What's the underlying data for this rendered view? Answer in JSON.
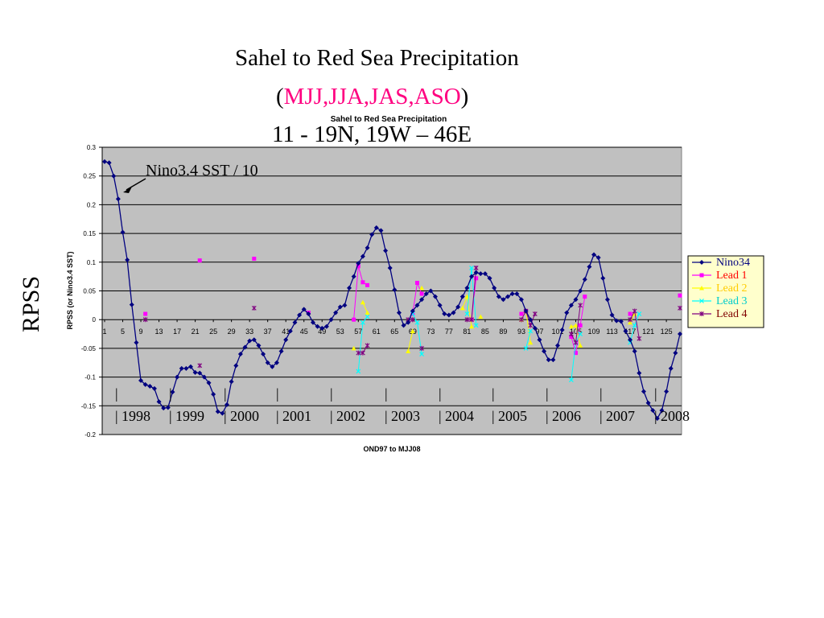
{
  "slide": {
    "title_line1": "Sahel to Red Sea Precipitation",
    "title_line2_open": "(",
    "title_line2_seasons": "MJJ,JJA,JAS,ASO",
    "title_line2_close": ")",
    "title_line3": "11 - 19N,  19W – 46E",
    "side_label": "RPSS",
    "annotation": "Nino3.4 SST / 10",
    "colors": {
      "seasons": "#ff0080",
      "plot_bg": "#c0c0c0"
    }
  },
  "chart_data": {
    "type": "line",
    "title": "Sahel to Red Sea Precipitation",
    "xlabel": "OND97 to MJJ08",
    "ylabel": "RPSS (or Nino3.4 SST)",
    "ylim": [
      -0.2,
      0.3
    ],
    "yticks": [
      "0.3",
      "0.25",
      "0.2",
      "0.15",
      "0.1",
      "0.05",
      "0",
      "-0.05",
      "-0.1",
      "-0.15",
      "-0.2"
    ],
    "xlim": [
      1,
      128
    ],
    "xtick_labels": [
      "1",
      "5",
      "9",
      "13",
      "17",
      "21",
      "25",
      "29",
      "33",
      "37",
      "41",
      "45",
      "49",
      "53",
      "57",
      "61",
      "65",
      "69",
      "73",
      "77",
      "81",
      "85",
      "89",
      "93",
      "97",
      "101",
      "105",
      "109",
      "113",
      "117",
      "121",
      "125"
    ],
    "grid": "horizontal",
    "legend_position": "right",
    "year_labels": [
      "1998",
      "1999",
      "2000",
      "2001",
      "2002",
      "2003",
      "2004",
      "2005",
      "2006",
      "2007",
      "2008"
    ],
    "year_marker": "|",
    "series": [
      {
        "name": "Nino34",
        "color": "#000080",
        "marker": "diamond",
        "points": [
          [
            1,
            0.275
          ],
          [
            2,
            0.273
          ],
          [
            3,
            0.25
          ],
          [
            4,
            0.21
          ],
          [
            5,
            0.152
          ],
          [
            6,
            0.104
          ],
          [
            7,
            0.026
          ],
          [
            8,
            -0.04
          ],
          [
            9,
            -0.106
          ],
          [
            10,
            -0.113
          ],
          [
            11,
            -0.116
          ],
          [
            12,
            -0.12
          ],
          [
            13,
            -0.143
          ],
          [
            14,
            -0.154
          ],
          [
            15,
            -0.153
          ],
          [
            16,
            -0.126
          ],
          [
            17,
            -0.1
          ],
          [
            18,
            -0.085
          ],
          [
            19,
            -0.085
          ],
          [
            20,
            -0.082
          ],
          [
            21,
            -0.092
          ],
          [
            22,
            -0.093
          ],
          [
            23,
            -0.1
          ],
          [
            24,
            -0.11
          ],
          [
            25,
            -0.13
          ],
          [
            26,
            -0.16
          ],
          [
            27,
            -0.163
          ],
          [
            28,
            -0.148
          ],
          [
            29,
            -0.108
          ],
          [
            30,
            -0.08
          ],
          [
            31,
            -0.06
          ],
          [
            32,
            -0.048
          ],
          [
            33,
            -0.037
          ],
          [
            34,
            -0.035
          ],
          [
            35,
            -0.045
          ],
          [
            36,
            -0.06
          ],
          [
            37,
            -0.075
          ],
          [
            38,
            -0.082
          ],
          [
            39,
            -0.075
          ],
          [
            40,
            -0.055
          ],
          [
            41,
            -0.035
          ],
          [
            42,
            -0.02
          ],
          [
            43,
            -0.005
          ],
          [
            44,
            0.008
          ],
          [
            45,
            0.018
          ],
          [
            46,
            0.01
          ],
          [
            47,
            -0.005
          ],
          [
            48,
            -0.012
          ],
          [
            49,
            -0.015
          ],
          [
            50,
            -0.012
          ],
          [
            51,
            0.0
          ],
          [
            52,
            0.012
          ],
          [
            53,
            0.022
          ],
          [
            54,
            0.025
          ],
          [
            55,
            0.055
          ],
          [
            56,
            0.075
          ],
          [
            57,
            0.098
          ],
          [
            58,
            0.11
          ],
          [
            59,
            0.125
          ],
          [
            60,
            0.148
          ],
          [
            61,
            0.16
          ],
          [
            62,
            0.155
          ],
          [
            63,
            0.12
          ],
          [
            64,
            0.09
          ],
          [
            65,
            0.052
          ],
          [
            66,
            0.012
          ],
          [
            67,
            -0.01
          ],
          [
            68,
            -0.005
          ],
          [
            69,
            0.015
          ],
          [
            70,
            0.025
          ],
          [
            71,
            0.035
          ],
          [
            72,
            0.045
          ],
          [
            73,
            0.05
          ],
          [
            74,
            0.04
          ],
          [
            75,
            0.025
          ],
          [
            76,
            0.01
          ],
          [
            77,
            0.008
          ],
          [
            78,
            0.012
          ],
          [
            79,
            0.022
          ],
          [
            80,
            0.04
          ],
          [
            81,
            0.055
          ],
          [
            82,
            0.075
          ],
          [
            83,
            0.082
          ],
          [
            84,
            0.08
          ],
          [
            85,
            0.08
          ],
          [
            86,
            0.072
          ],
          [
            87,
            0.055
          ],
          [
            88,
            0.04
          ],
          [
            89,
            0.035
          ],
          [
            90,
            0.04
          ],
          [
            91,
            0.045
          ],
          [
            92,
            0.045
          ],
          [
            93,
            0.035
          ],
          [
            94,
            0.015
          ],
          [
            95,
            0.0
          ],
          [
            96,
            -0.015
          ],
          [
            97,
            -0.035
          ],
          [
            98,
            -0.055
          ],
          [
            99,
            -0.07
          ],
          [
            100,
            -0.07
          ],
          [
            101,
            -0.045
          ],
          [
            102,
            -0.018
          ],
          [
            103,
            0.012
          ],
          [
            104,
            0.025
          ],
          [
            105,
            0.035
          ],
          [
            106,
            0.05
          ],
          [
            107,
            0.07
          ],
          [
            108,
            0.092
          ],
          [
            109,
            0.113
          ],
          [
            110,
            0.108
          ],
          [
            111,
            0.072
          ],
          [
            112,
            0.035
          ],
          [
            113,
            0.008
          ],
          [
            114,
            -0.002
          ],
          [
            115,
            -0.003
          ],
          [
            116,
            -0.02
          ],
          [
            117,
            -0.035
          ],
          [
            118,
            -0.055
          ],
          [
            119,
            -0.093
          ],
          [
            120,
            -0.125
          ],
          [
            121,
            -0.145
          ],
          [
            122,
            -0.158
          ],
          [
            123,
            -0.172
          ],
          [
            124,
            -0.158
          ],
          [
            125,
            -0.125
          ],
          [
            126,
            -0.085
          ],
          [
            127,
            -0.058
          ],
          [
            128,
            -0.025
          ]
        ]
      },
      {
        "name": "Lead 1",
        "color": "#ff00ff",
        "marker": "square",
        "points": [
          [
            10,
            0.01
          ],
          [
            22,
            0.103
          ],
          [
            34,
            0.106
          ],
          [
            46,
            0.012
          ],
          [
            56,
            0.0
          ],
          [
            57,
            0.093
          ],
          [
            58,
            0.065
          ],
          [
            59,
            0.06
          ],
          [
            69,
            0.01
          ],
          [
            70,
            0.064
          ],
          [
            71,
            0.045
          ],
          [
            82,
            0.0
          ],
          [
            83,
            0.072
          ],
          [
            93,
            0.01
          ],
          [
            94,
            0.015
          ],
          [
            104,
            -0.03
          ],
          [
            105,
            -0.058
          ],
          [
            106,
            -0.01
          ],
          [
            107,
            0.04
          ],
          [
            117,
            0.01
          ],
          [
            128,
            0.042
          ]
        ]
      },
      {
        "name": "Lead 2",
        "color": "#ffff00",
        "marker": "triangle",
        "points": [
          [
            56,
            -0.05
          ],
          [
            58,
            0.03
          ],
          [
            59,
            0.012
          ],
          [
            68,
            -0.055
          ],
          [
            69,
            -0.02
          ],
          [
            71,
            0.055
          ],
          [
            80,
            0.02
          ],
          [
            81,
            0.04
          ],
          [
            82,
            -0.012
          ],
          [
            84,
            0.005
          ],
          [
            93,
            0.0
          ],
          [
            94,
            0.015
          ],
          [
            95,
            -0.04
          ],
          [
            104,
            -0.012
          ],
          [
            105,
            -0.01
          ],
          [
            106,
            -0.045
          ],
          [
            117,
            -0.005
          ],
          [
            118,
            0.01
          ]
        ]
      },
      {
        "name": "Lead 3",
        "color": "#00ffff",
        "marker": "x",
        "points": [
          [
            57,
            -0.09
          ],
          [
            58,
            -0.005
          ],
          [
            59,
            0.005
          ],
          [
            69,
            0.01
          ],
          [
            70,
            -0.005
          ],
          [
            71,
            -0.06
          ],
          [
            81,
            0.01
          ],
          [
            82,
            0.09
          ],
          [
            83,
            -0.01
          ],
          [
            94,
            -0.05
          ],
          [
            95,
            -0.02
          ],
          [
            104,
            -0.105
          ],
          [
            105,
            -0.04
          ],
          [
            106,
            -0.025
          ],
          [
            117,
            -0.04
          ],
          [
            118,
            -0.01
          ],
          [
            119,
            0.01
          ]
        ]
      },
      {
        "name": "Lead 4",
        "color": "#800080",
        "marker": "star",
        "points": [
          [
            10,
            0.0
          ],
          [
            22,
            -0.08
          ],
          [
            34,
            0.02
          ],
          [
            57,
            -0.058
          ],
          [
            58,
            -0.058
          ],
          [
            59,
            -0.045
          ],
          [
            68,
            0.0
          ],
          [
            69,
            0.0
          ],
          [
            71,
            -0.05
          ],
          [
            81,
            0.0
          ],
          [
            82,
            0.0
          ],
          [
            83,
            0.09
          ],
          [
            93,
            0.0
          ],
          [
            94,
            0.015
          ],
          [
            95,
            -0.01
          ],
          [
            96,
            0.01
          ],
          [
            104,
            -0.025
          ],
          [
            105,
            -0.04
          ],
          [
            106,
            0.025
          ],
          [
            117,
            0.0
          ],
          [
            118,
            0.015
          ],
          [
            119,
            -0.033
          ],
          [
            128,
            0.02
          ]
        ]
      }
    ]
  }
}
